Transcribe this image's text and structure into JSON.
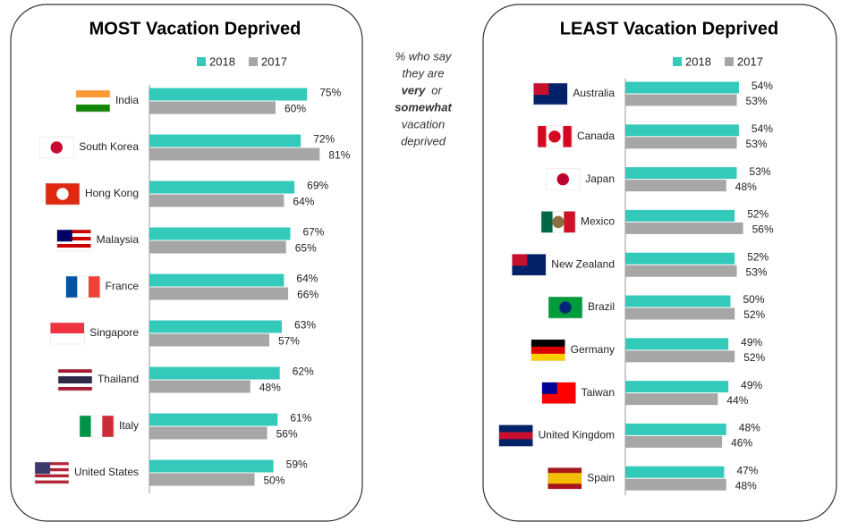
{
  "chart_data": [
    {
      "type": "bar",
      "title": "MOST Vacation Deprived",
      "categories": [
        "India",
        "South Korea",
        "Hong Kong",
        "Malaysia",
        "France",
        "Singapore",
        "Thailand",
        "Italy",
        "United States"
      ],
      "series": [
        {
          "name": "2018",
          "color": "#33c9bb",
          "values": [
            75,
            72,
            69,
            67,
            64,
            63,
            62,
            61,
            59
          ],
          "value_labels": [
            "75%",
            "72%",
            "69%",
            "67%",
            "64%",
            "63%",
            "62%",
            "61%",
            "59%"
          ]
        },
        {
          "name": "2017",
          "color": "#a6a6a6",
          "values": [
            60,
            81,
            64,
            65,
            66,
            57,
            48,
            56,
            50
          ],
          "value_labels": [
            "60%",
            "81%",
            "64%",
            "65%",
            "66%",
            "57%",
            "48%",
            "56%",
            "50%"
          ]
        }
      ]
    },
    {
      "type": "bar",
      "title": "LEAST Vacation Deprived",
      "categories": [
        "Australia",
        "Canada",
        "Japan",
        "Mexico",
        "New Zealand",
        "Brazil",
        "Germany",
        "Taiwan",
        "United Kingdom",
        "Spain"
      ],
      "series": [
        {
          "name": "2018",
          "color": "#33c9bb",
          "values": [
            54,
            54,
            53,
            52,
            52,
            50,
            49,
            49,
            48,
            47
          ],
          "value_labels": [
            "54%",
            "54%",
            "53%",
            "52%",
            "52%",
            "50%",
            "49%",
            "49%",
            "48%",
            "47%"
          ]
        },
        {
          "name": "2017",
          "color": "#a6a6a6",
          "values": [
            53,
            53,
            48,
            56,
            53,
            52,
            52,
            44,
            46,
            48
          ],
          "value_labels": [
            "53%",
            "53%",
            "48%",
            "56%",
            "53%",
            "52%",
            "52%",
            "44%",
            "46%",
            "48%"
          ]
        }
      ]
    }
  ],
  "note": [
    "% who say",
    "they are",
    "very",
    "or",
    "somewhat",
    "vacation",
    "deprived"
  ]
}
